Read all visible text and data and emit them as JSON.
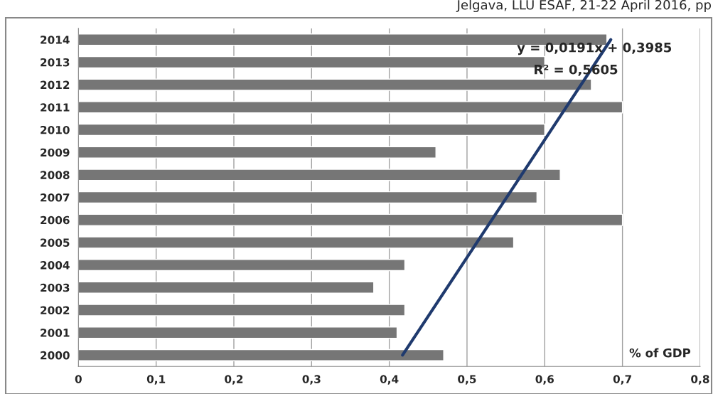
{
  "chart_data": {
    "type": "bar",
    "orientation": "horizontal",
    "categories": [
      "2014",
      "2013",
      "2012",
      "2011",
      "2010",
      "2009",
      "2008",
      "2007",
      "2006",
      "2005",
      "2004",
      "2003",
      "2002",
      "2001",
      "2000"
    ],
    "series": [
      {
        "color": "#767676",
        "values": [
          0.68,
          0.6,
          0.66,
          0.7,
          0.6,
          0.46,
          0.62,
          0.59,
          0.7,
          0.56,
          0.42,
          0.38,
          0.42,
          0.41,
          0.47
        ]
      },
      {
        "type": "line",
        "color": "#1f3a6e",
        "values": [
          0.685,
          null,
          null,
          null,
          null,
          null,
          null,
          null,
          null,
          null,
          null,
          null,
          null,
          null,
          0.417
        ]
      }
    ],
    "xlabel": "% of GDP",
    "xlim": [
      0,
      0.8
    ],
    "xticks": [
      0,
      {
        "value": 0.1,
        "label": "0,1"
      },
      {
        "value": 0.2,
        "label": "0,2"
      },
      {
        "value": 0.3,
        "label": "0,3"
      },
      {
        "value": 0.4,
        "label": "0,4"
      },
      {
        "value": 0.5,
        "label": "0,5"
      },
      {
        "value": 0.6,
        "label": "0,6"
      },
      {
        "value": 0.7,
        "label": "0,7"
      },
      {
        "value": 0.8,
        "label": "0,8"
      }
    ],
    "grid": "x",
    "annotations": [
      "y = 0,0191x + 0,3985",
      "R² = 0,5605",
      "Jelgava, LLU ESAF, 21-22 April 2016, pp"
    ]
  }
}
